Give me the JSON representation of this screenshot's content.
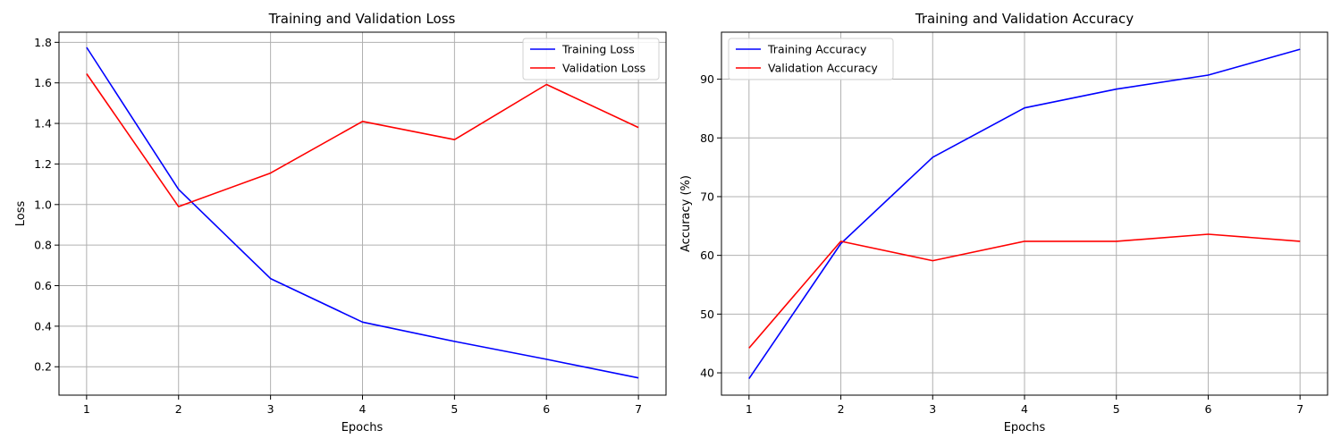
{
  "chart_data": [
    {
      "type": "line",
      "title": "Training and Validation Loss",
      "xlabel": "Epochs",
      "ylabel": "Loss",
      "x": [
        1,
        2,
        3,
        4,
        5,
        6,
        7
      ],
      "xlim": [
        0.7,
        7.3
      ],
      "ylim": [
        0.06,
        1.85
      ],
      "xticks": [
        1,
        2,
        3,
        4,
        5,
        6,
        7
      ],
      "yticks": [
        0.2,
        0.4,
        0.6,
        0.8,
        1.0,
        1.2,
        1.4,
        1.6,
        1.8
      ],
      "ytick_labels": [
        "0.2",
        "0.4",
        "0.6",
        "0.8",
        "1.0",
        "1.2",
        "1.4",
        "1.6",
        "1.8"
      ],
      "grid": true,
      "legend_position": "upper right",
      "series": [
        {
          "name": "Training Loss",
          "color": "#0000ff",
          "values": [
            1.775,
            1.075,
            0.635,
            0.42,
            0.325,
            0.237,
            0.145
          ]
        },
        {
          "name": "Validation Loss",
          "color": "#ff0000",
          "values": [
            1.645,
            0.99,
            1.155,
            1.41,
            1.32,
            1.592,
            1.38
          ]
        }
      ]
    },
    {
      "type": "line",
      "title": "Training and Validation Accuracy",
      "xlabel": "Epochs",
      "ylabel": "Accuracy (%)",
      "x": [
        1,
        2,
        3,
        4,
        5,
        6,
        7
      ],
      "xlim": [
        0.7,
        7.3
      ],
      "ylim": [
        36.2,
        98.0
      ],
      "xticks": [
        1,
        2,
        3,
        4,
        5,
        6,
        7
      ],
      "yticks": [
        40,
        50,
        60,
        70,
        80,
        90
      ],
      "ytick_labels": [
        "40",
        "50",
        "60",
        "70",
        "80",
        "90"
      ],
      "grid": true,
      "legend_position": "upper left",
      "series": [
        {
          "name": "Training Accuracy",
          "color": "#0000ff",
          "values": [
            39.0,
            62.0,
            76.7,
            85.1,
            88.3,
            90.7,
            95.1
          ]
        },
        {
          "name": "Validation Accuracy",
          "color": "#ff0000",
          "values": [
            44.2,
            62.4,
            59.1,
            62.4,
            62.4,
            63.6,
            62.4
          ]
        }
      ]
    }
  ]
}
